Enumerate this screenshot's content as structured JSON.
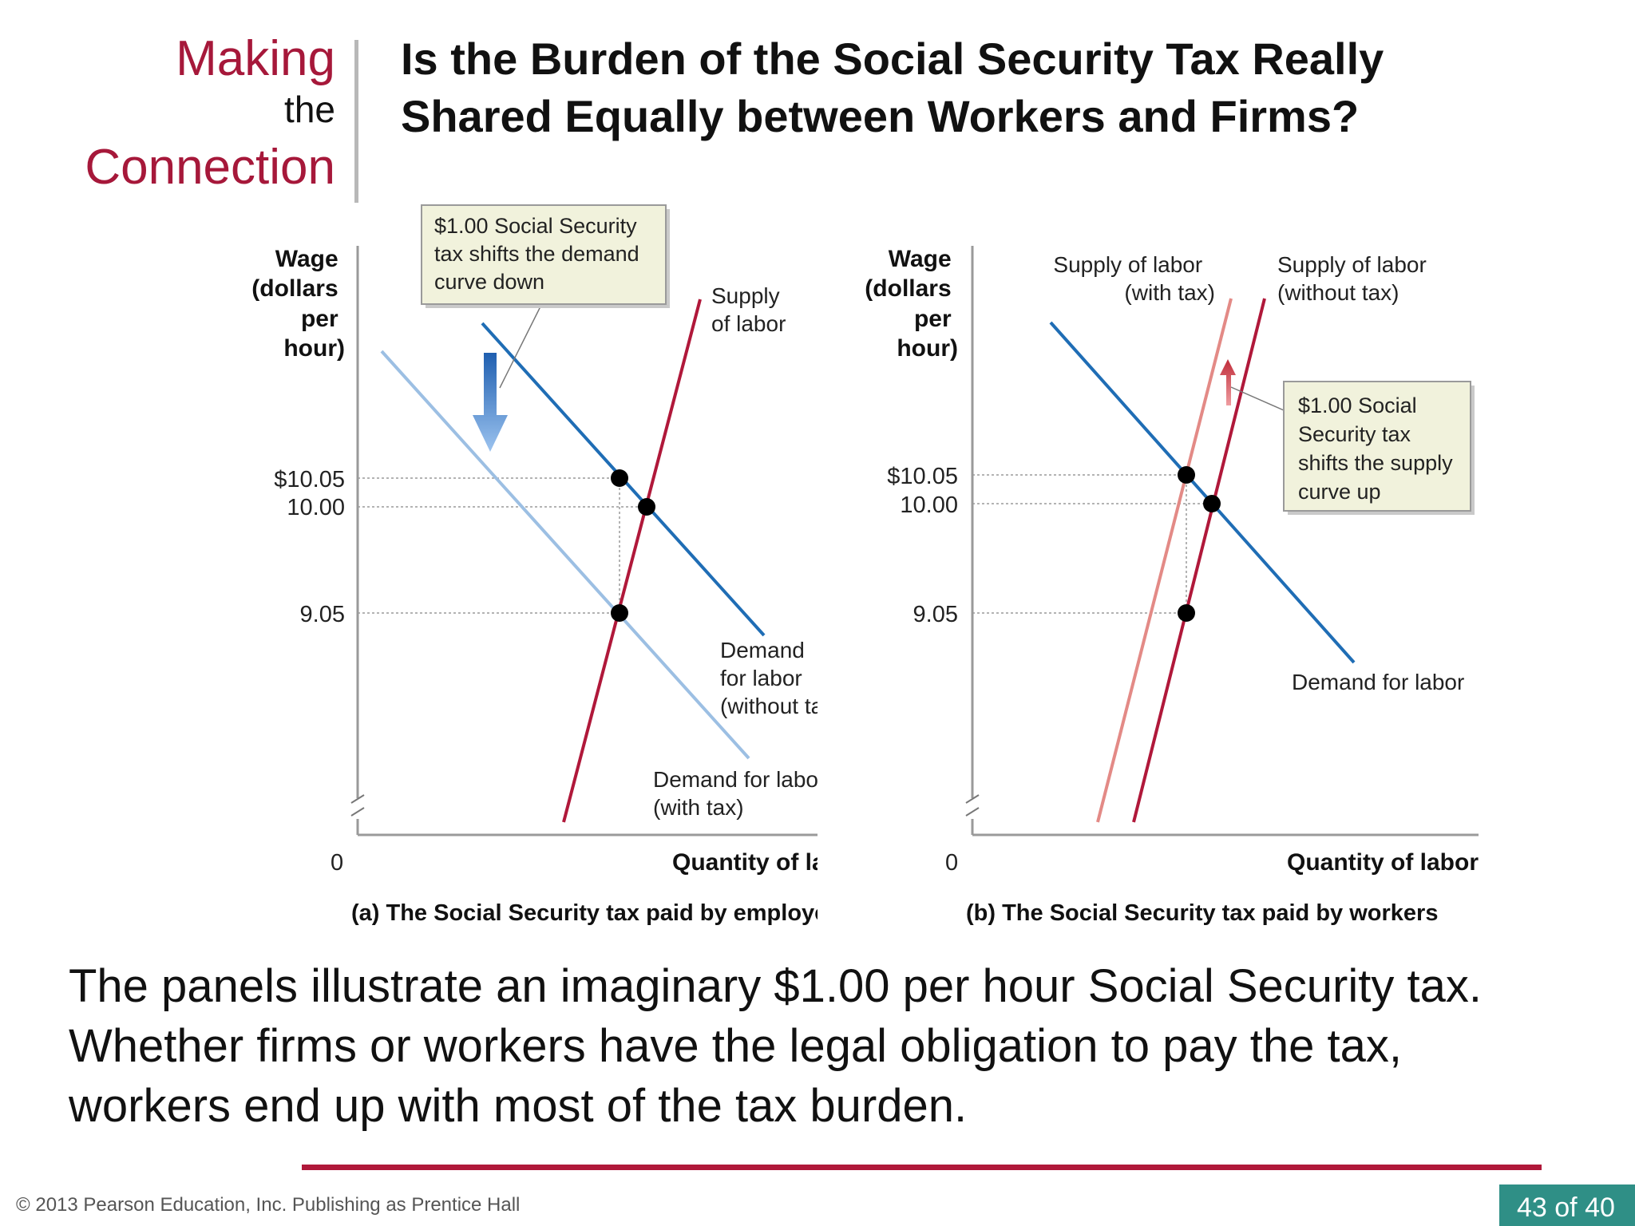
{
  "header": {
    "making": "Making",
    "the": "the",
    "connection": "Connection",
    "title_line1": "Is the Burden of the Social Security Tax Really",
    "title_line2": "Shared Equally between Workers and Firms?"
  },
  "chart_data": [
    {
      "type": "line",
      "caption": "(a) The Social Security tax paid by employers",
      "ylabel": [
        "Wage",
        "(dollars",
        "per",
        "hour)"
      ],
      "xlabel": "Quantity of labor",
      "origin_label": "0",
      "y_ticks": [
        {
          "value": 10.05,
          "label": "$10.05"
        },
        {
          "value": 10.0,
          "label": "10.00"
        },
        {
          "value": 9.05,
          "label": "9.05"
        }
      ],
      "series": [
        {
          "label": [
            "Supply",
            "of labor"
          ],
          "color": "#b0183a"
        },
        {
          "label": [
            "Demand",
            "for labor",
            "(without tax)"
          ],
          "color": "#1f6db5"
        },
        {
          "label": [
            "Demand for labor",
            "(with tax)"
          ],
          "color": "#9cbfe3"
        }
      ],
      "equilibria": [
        "10.05",
        "10.00",
        "9.05"
      ],
      "annotation": [
        "$1.00 Social Security",
        "tax shifts the demand",
        "curve down"
      ]
    },
    {
      "type": "line",
      "caption": "(b) The Social Security tax paid by workers",
      "ylabel": [
        "Wage",
        "(dollars",
        "per",
        "hour)"
      ],
      "xlabel": "Quantity of labor",
      "origin_label": "0",
      "y_ticks": [
        {
          "value": 10.05,
          "label": "$10.05"
        },
        {
          "value": 10.0,
          "label": "10.00"
        },
        {
          "value": 9.05,
          "label": "9.05"
        }
      ],
      "series": [
        {
          "label": [
            "Supply of labor",
            "(with tax)"
          ],
          "color": "#e38a86"
        },
        {
          "label": [
            "Supply of labor",
            "(without tax)"
          ],
          "color": "#b0183a"
        },
        {
          "label": [
            "Demand for labor"
          ],
          "color": "#1f6db5"
        }
      ],
      "equilibria": [
        "10.05",
        "10.00",
        "9.05"
      ],
      "annotation": [
        "$1.00 Social",
        "Security tax",
        "shifts the supply",
        "curve up"
      ]
    }
  ],
  "body": {
    "line1": "The panels illustrate an imaginary $1.00 per hour Social Security tax.",
    "line2": "Whether firms or workers have the legal obligation to pay the tax,",
    "line3": "workers end up with most of the tax burden."
  },
  "footer": {
    "copyright": "© 2013 Pearson Education, Inc. Publishing as Prentice Hall",
    "page": "43 of 40"
  }
}
